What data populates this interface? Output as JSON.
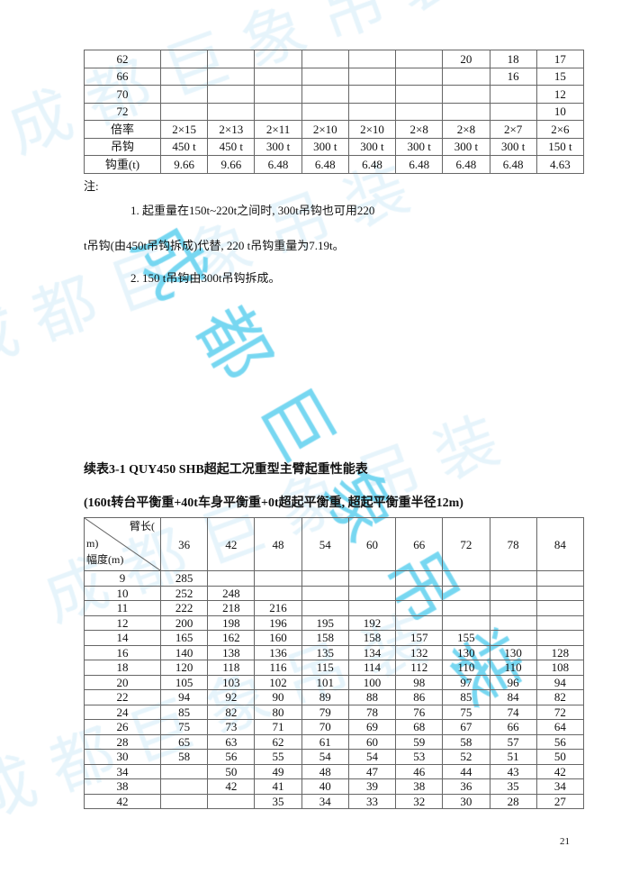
{
  "table1": {
    "rows": [
      {
        "label": "62",
        "cells": [
          "",
          "",
          "",
          "",
          "",
          "20",
          "18",
          "17"
        ]
      },
      {
        "label": "66",
        "cells": [
          "",
          "",
          "",
          "",
          "",
          "",
          "16",
          "15"
        ]
      },
      {
        "label": "70",
        "cells": [
          "",
          "",
          "",
          "",
          "",
          "",
          "",
          "12"
        ]
      },
      {
        "label": "72",
        "cells": [
          "",
          "",
          "",
          "",
          "",
          "",
          "",
          "10"
        ]
      },
      {
        "label": "倍率",
        "cells": [
          "2×15",
          "2×13",
          "2×11",
          "2×10",
          "2×10",
          "2×8",
          "2×8",
          "2×7",
          "2×6"
        ]
      },
      {
        "label": "吊钩",
        "cells": [
          "450 t",
          "450 t",
          "300 t",
          "300 t",
          "300 t",
          "300 t",
          "300 t",
          "300 t",
          "150 t"
        ]
      },
      {
        "label": "钩重(t)",
        "cells": [
          "9.66",
          "9.66",
          "6.48",
          "6.48",
          "6.48",
          "6.48",
          "6.48",
          "6.48",
          "4.63"
        ]
      }
    ]
  },
  "notes": {
    "heading": "注:",
    "line1": "1. 起重量在150t~220t之间时, 300t吊钩也可用220",
    "line2": "t吊钩(由450t吊钩拆成)代替, 220 t吊钩重量为7.19t。",
    "line3": "2. 150 t吊钩由300t吊钩拆成。"
  },
  "table2": {
    "title": "续表3-1 QUY450 SHB超起工况重型主臂起重性能表",
    "subtitle": "(160t转台平衡重+40t车身平衡重+0t超起平衡重, 超起平衡重半径12m)",
    "corner_top": "臂长(",
    "corner_mid": "m)",
    "corner_bottom": "幅度(m)",
    "boom_lengths": [
      "36",
      "42",
      "48",
      "54",
      "60",
      "66",
      "72",
      "78",
      "84"
    ],
    "rows": [
      {
        "radius": "9",
        "values": [
          "285",
          "",
          "",
          "",
          "",
          "",
          "",
          "",
          ""
        ]
      },
      {
        "radius": "10",
        "values": [
          "252",
          "248",
          "",
          "",
          "",
          "",
          "",
          "",
          ""
        ]
      },
      {
        "radius": "11",
        "values": [
          "222",
          "218",
          "216",
          "",
          "",
          "",
          "",
          "",
          ""
        ]
      },
      {
        "radius": "12",
        "values": [
          "200",
          "198",
          "196",
          "195",
          "192",
          "",
          "",
          "",
          ""
        ]
      },
      {
        "radius": "14",
        "values": [
          "165",
          "162",
          "160",
          "158",
          "158",
          "157",
          "155",
          "",
          ""
        ]
      },
      {
        "radius": "16",
        "values": [
          "140",
          "138",
          "136",
          "135",
          "134",
          "132",
          "130",
          "130",
          "128"
        ]
      },
      {
        "radius": "18",
        "values": [
          "120",
          "118",
          "116",
          "115",
          "114",
          "112",
          "110",
          "110",
          "108"
        ]
      },
      {
        "radius": "20",
        "values": [
          "105",
          "103",
          "102",
          "101",
          "100",
          "98",
          "97",
          "96",
          "94"
        ]
      },
      {
        "radius": "22",
        "values": [
          "94",
          "92",
          "90",
          "89",
          "88",
          "86",
          "85",
          "84",
          "82"
        ]
      },
      {
        "radius": "24",
        "values": [
          "85",
          "82",
          "80",
          "79",
          "78",
          "76",
          "75",
          "74",
          "72"
        ]
      },
      {
        "radius": "26",
        "values": [
          "75",
          "73",
          "71",
          "70",
          "69",
          "68",
          "67",
          "66",
          "64"
        ]
      },
      {
        "radius": "28",
        "values": [
          "65",
          "63",
          "62",
          "61",
          "60",
          "59",
          "58",
          "57",
          "56"
        ]
      },
      {
        "radius": "30",
        "values": [
          "58",
          "56",
          "55",
          "54",
          "54",
          "53",
          "52",
          "51",
          "50"
        ]
      },
      {
        "radius": "34",
        "values": [
          "",
          "50",
          "49",
          "48",
          "47",
          "46",
          "44",
          "43",
          "42"
        ]
      },
      {
        "radius": "38",
        "values": [
          "",
          "42",
          "41",
          "40",
          "39",
          "38",
          "36",
          "35",
          "34"
        ]
      },
      {
        "radius": "42",
        "values": [
          "",
          "",
          "35",
          "34",
          "33",
          "32",
          "30",
          "28",
          "27"
        ]
      }
    ]
  },
  "page_number": "21",
  "watermark": {
    "text": "成都巨象吊装",
    "color": "#5fd0ef"
  }
}
